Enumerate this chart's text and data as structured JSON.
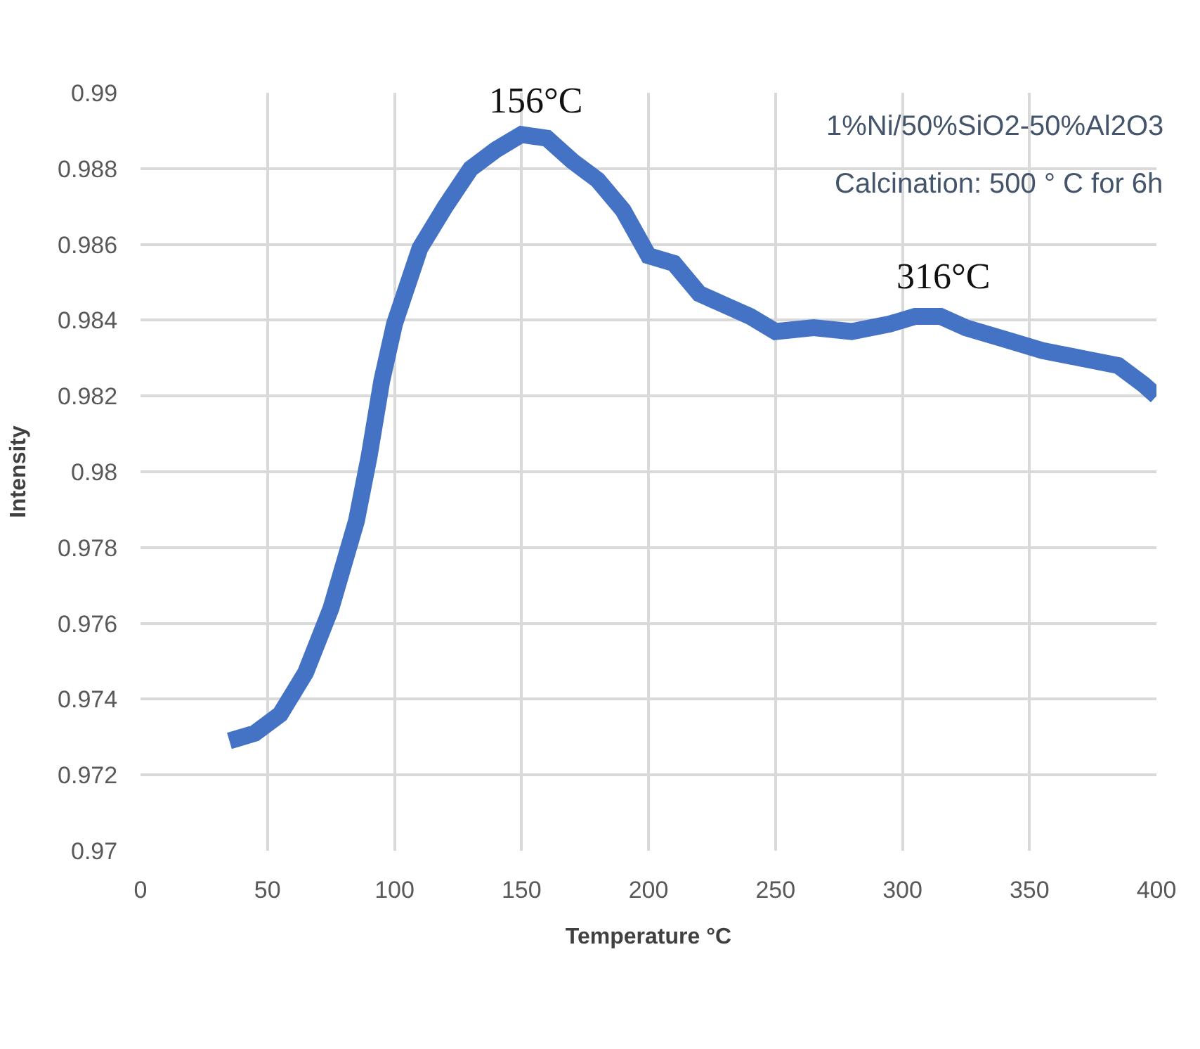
{
  "chart_data": {
    "type": "line",
    "xlabel": "Temperature °C",
    "ylabel": "Intensity",
    "annotations": [
      {
        "text": "156°C",
        "x": 156,
        "y": 0.9889
      },
      {
        "text": "316°C",
        "x": 316,
        "y": 0.9841
      },
      "1%Ni/50%SiO2-50%Al2O3",
      "Calcination: 500 ° C for 6h"
    ],
    "series": [
      {
        "color": "#4472c4",
        "x": [
          35,
          45,
          55,
          65,
          75,
          85,
          90,
          95,
          100,
          110,
          120,
          130,
          140,
          150,
          160,
          170,
          180,
          190,
          200,
          210,
          220,
          230,
          240,
          250,
          265,
          280,
          295,
          305,
          315,
          325,
          340,
          355,
          370,
          385,
          395,
          400
        ],
        "values": [
          0.9729,
          0.9731,
          0.9736,
          0.9747,
          0.9764,
          0.9787,
          0.9804,
          0.9824,
          0.9839,
          0.9859,
          0.987,
          0.988,
          0.9885,
          0.9889,
          0.9888,
          0.9882,
          0.9877,
          0.9869,
          0.9857,
          0.9855,
          0.9847,
          0.9844,
          0.9841,
          0.9837,
          0.9838,
          0.9837,
          0.9839,
          0.9841,
          0.9841,
          0.9838,
          0.9835,
          0.9832,
          0.983,
          0.9828,
          0.9823,
          0.982
        ]
      }
    ],
    "xlim": [
      0,
      400
    ],
    "xticks": [
      0,
      50,
      100,
      150,
      200,
      250,
      300,
      350,
      400
    ],
    "ylim": [
      0.97,
      0.99
    ],
    "yticks": [
      0.97,
      0.972,
      0.974,
      0.976,
      0.978,
      0.98,
      0.982,
      0.984,
      0.986,
      0.988,
      0.99
    ],
    "grid": true,
    "marker": "none",
    "line_style": "solid"
  }
}
